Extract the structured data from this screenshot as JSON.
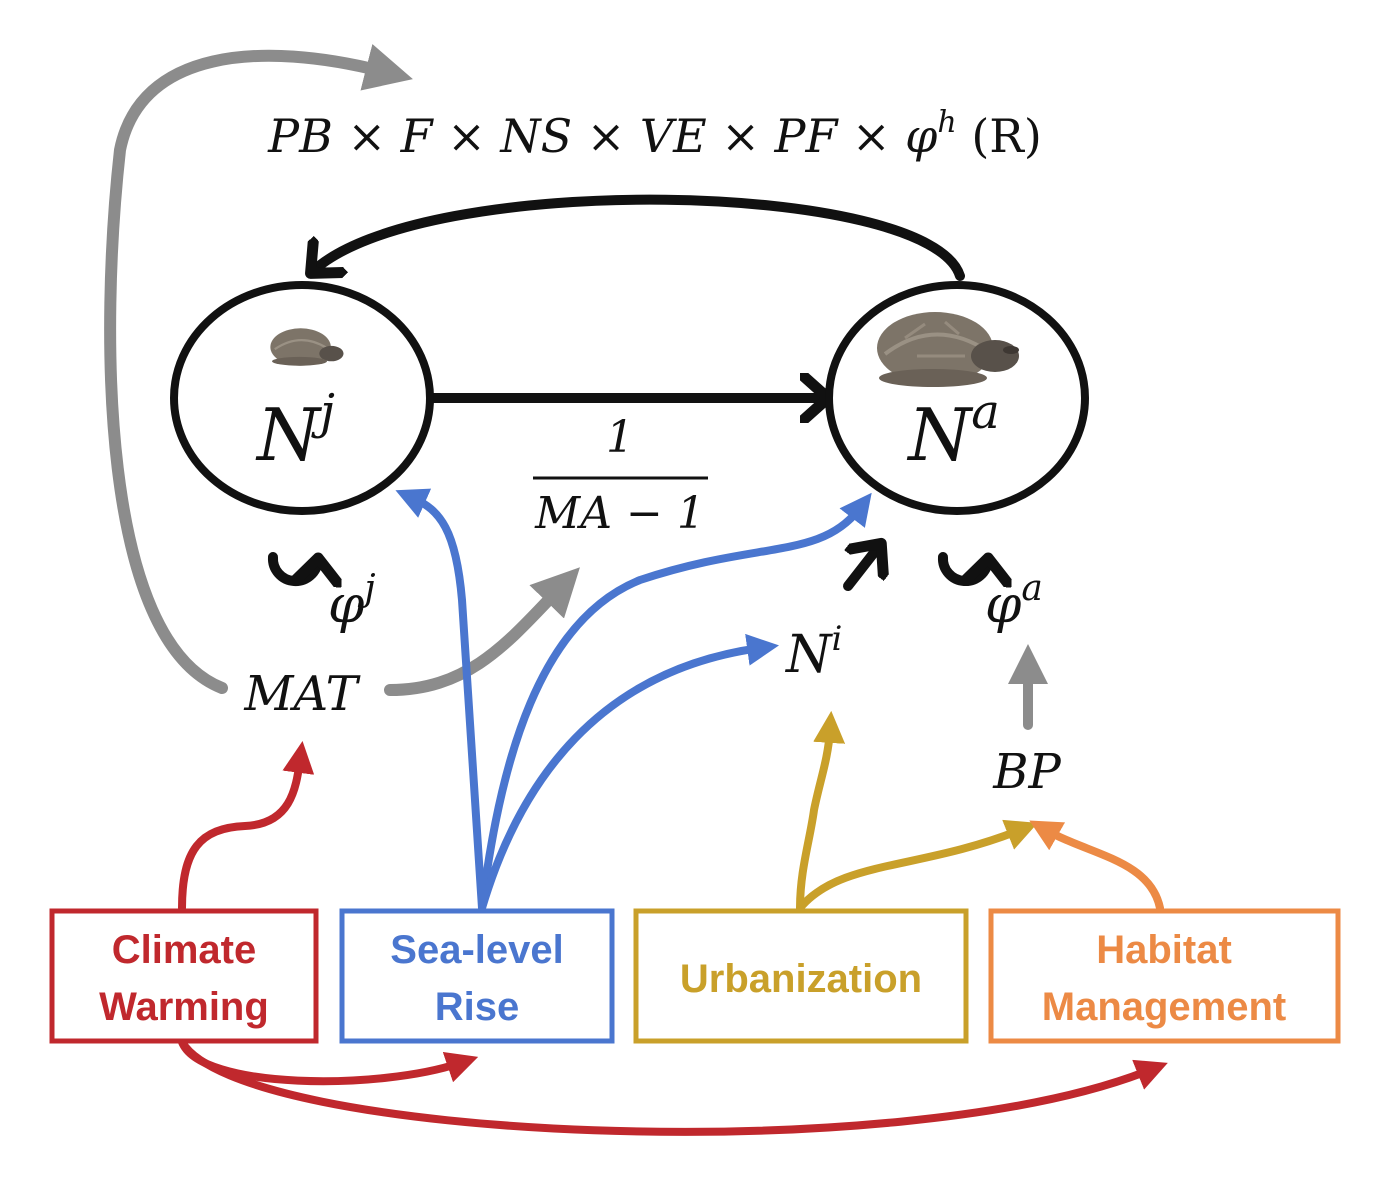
{
  "colors": {
    "black": "#111111",
    "gray": "#8c8c8c",
    "climate": "#c0282d",
    "sea": "#4a76cf",
    "urban": "#c9a02a",
    "habitat": "#ec8a45",
    "turtle_shell": "#7d7468",
    "turtle_skin": "#58514a"
  },
  "formula": {
    "text": "PB × F × NS × VE × PF × φ",
    "superscript": "h",
    "tail": " (R)"
  },
  "nodes": {
    "juvenile": {
      "base": "N",
      "sup": "j",
      "icon": "juvenile-tortoise-icon"
    },
    "adult": {
      "base": "N",
      "sup": "a",
      "icon": "adult-tortoise-icon"
    },
    "immigrant": {
      "base": "N",
      "sup": "i"
    },
    "mat": "MAT",
    "bp": "BP"
  },
  "transition": {
    "numerator": "1",
    "denominator": "MA − 1"
  },
  "survival": {
    "juvenile": {
      "base": "φ",
      "sup": "j"
    },
    "adult": {
      "base": "φ",
      "sup": "a"
    }
  },
  "drivers": {
    "climate": {
      "line1": "Climate",
      "line2": "Warming"
    },
    "sea": {
      "line1": "Sea-level",
      "line2": "Rise"
    },
    "urban": {
      "line1": "Urbanization"
    },
    "habitat": {
      "line1": "Habitat",
      "line2": "Management"
    }
  }
}
